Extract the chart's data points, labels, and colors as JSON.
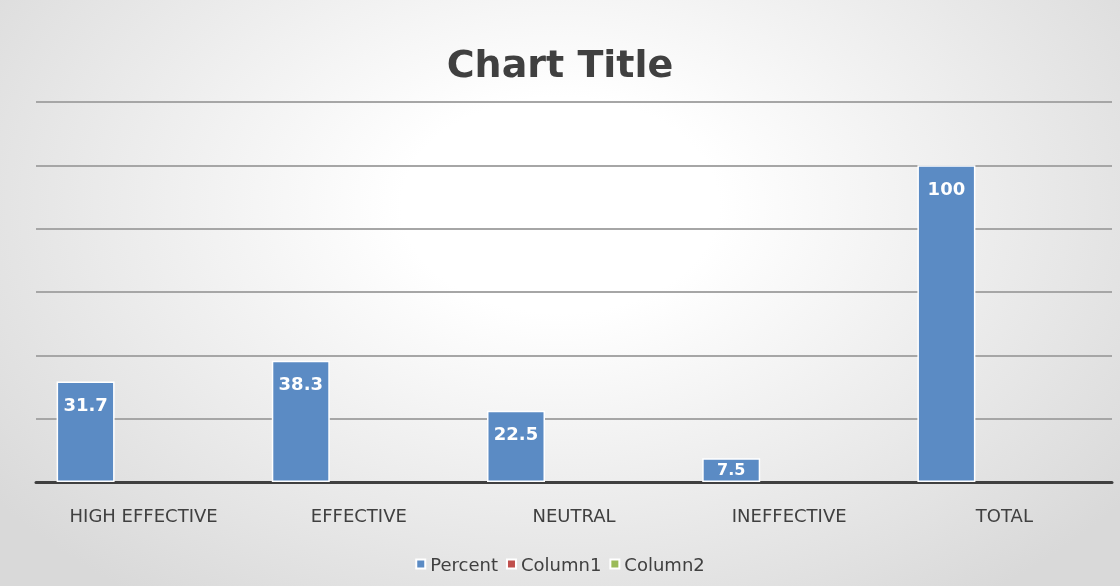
{
  "chart_data": {
    "type": "bar",
    "title": "Chart Title",
    "categories": [
      "HIGH EFFECTIVE",
      "EFFECTIVE",
      "NEUTRAL",
      "INEFFECTIVE",
      "TOTAL"
    ],
    "series": [
      {
        "name": "Percent",
        "color": "#5b8bc4",
        "values": [
          31.7,
          38.3,
          22.5,
          7.5,
          100
        ]
      },
      {
        "name": "Column1",
        "color": "#c0504d",
        "values": [
          null,
          null,
          null,
          null,
          null
        ]
      },
      {
        "name": "Column2",
        "color": "#9bbb59",
        "values": [
          null,
          null,
          null,
          null,
          null
        ]
      }
    ],
    "ylim": [
      0,
      120
    ],
    "yticks": [
      {
        "value": 0,
        "label": null
      },
      {
        "value": 20,
        "label": null
      },
      {
        "value": 40,
        "label": null
      },
      {
        "value": 60,
        "label": null
      },
      {
        "value": 80,
        "label": null
      },
      {
        "value": 100,
        "label": null
      },
      {
        "value": 120,
        "label": null
      }
    ],
    "tick_labels": "x",
    "grid": "y",
    "data_labels": true,
    "legend": "bottom"
  }
}
